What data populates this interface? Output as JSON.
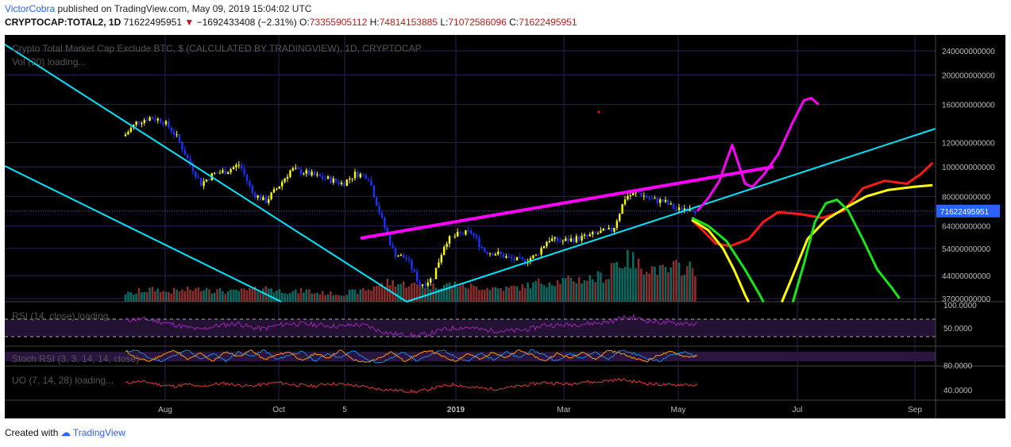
{
  "header": {
    "author": "VictorCobra",
    "published": "published on TradingView.com, May 09, 2019 15:04:02 UTC",
    "symbol": "CRYPTOCAP:TOTAL2, 1D",
    "last": "71622495951",
    "arrow": "▼",
    "change": "−1692433408 (−2.31%)",
    "o_label": "O:",
    "o_value": "73355905112",
    "h_label": "H:",
    "h_value": "74814153885",
    "l_label": "L:",
    "l_value": "71072586096",
    "c_label": "C:",
    "c_value": "71622495951"
  },
  "panes": {
    "main_title": "Crypto Total Market Cap Exclude BTC, $ (CALCULATED BY TRADINGVIEW), 1D, CRYPTOCAP",
    "vol_label": "Vol (20) loading...",
    "rsi_label": "RSI (14, close) loading...",
    "stoch_label": "Stoch RSI (3, 3, 14, 14, close)",
    "uo_label": "UO (7, 14, 28) loading..."
  },
  "price_axis": {
    "labels": [
      "240000000000",
      "200000000000",
      "160000000000",
      "120000000000",
      "100000000000",
      "80000000000",
      "64000000000",
      "54000000000",
      "44000000000",
      "37000000000"
    ],
    "current": "71622495951"
  },
  "rsi_axis": [
    "100.0000",
    "50.0000"
  ],
  "stoch_axis": [
    "80.0000"
  ],
  "uo_axis": [
    "40.0000"
  ],
  "time_axis": [
    "Aug",
    "Oct",
    "5",
    "2019",
    "Mar",
    "May",
    "Jul",
    "Sep"
  ],
  "footer": {
    "created_with": "Created with",
    "brand": "TradingView"
  },
  "colors": {
    "background": "#000000",
    "trend_cyan": "#00e5ff",
    "trend_magenta": "#ff00ff",
    "projection_red": "#ff1a1a",
    "projection_yellow": "#ffff00",
    "projection_green": "#19e619",
    "candle_up": "#ffff00",
    "candle_down": "#1a33ff",
    "rsi_line": "#9c27b0",
    "uo_line": "#e53935",
    "current_price_tag": "#2962ff"
  },
  "chart_data": {
    "type": "candlestick",
    "title": "Crypto Total Market Cap Exclude BTC, $ (CALCULATED BY TRADINGVIEW), 1D, CRYPTOCAP",
    "y_scale": "log",
    "x_ticks": [
      "Aug",
      "Oct",
      "5",
      "2019",
      "Mar",
      "May",
      "Jul",
      "Sep"
    ],
    "y_ticks": [
      240000000000,
      200000000000,
      160000000000,
      120000000000,
      100000000000,
      80000000000,
      64000000000,
      54000000000,
      44000000000,
      37000000000
    ],
    "last_close": 71622495951,
    "price_path": [
      {
        "date": "2018-07-01",
        "close": 126000000000
      },
      {
        "date": "2018-07-08",
        "close": 140000000000
      },
      {
        "date": "2018-07-15",
        "close": 145000000000
      },
      {
        "date": "2018-07-22",
        "close": 142000000000
      },
      {
        "date": "2018-07-29",
        "close": 128000000000
      },
      {
        "date": "2018-08-05",
        "close": 105000000000
      },
      {
        "date": "2018-08-12",
        "close": 88000000000
      },
      {
        "date": "2018-08-19",
        "close": 95000000000
      },
      {
        "date": "2018-08-26",
        "close": 97000000000
      },
      {
        "date": "2018-09-02",
        "close": 102000000000
      },
      {
        "date": "2018-09-09",
        "close": 82000000000
      },
      {
        "date": "2018-09-16",
        "close": 77000000000
      },
      {
        "date": "2018-09-23",
        "close": 86000000000
      },
      {
        "date": "2018-09-30",
        "close": 98000000000
      },
      {
        "date": "2018-10-07",
        "close": 96000000000
      },
      {
        "date": "2018-10-14",
        "close": 93000000000
      },
      {
        "date": "2018-10-21",
        "close": 91000000000
      },
      {
        "date": "2018-10-28",
        "close": 88000000000
      },
      {
        "date": "2018-11-04",
        "close": 95000000000
      },
      {
        "date": "2018-11-11",
        "close": 93000000000
      },
      {
        "date": "2018-11-18",
        "close": 68000000000
      },
      {
        "date": "2018-11-25",
        "close": 52000000000
      },
      {
        "date": "2018-12-02",
        "close": 50000000000
      },
      {
        "date": "2018-12-09",
        "close": 41000000000
      },
      {
        "date": "2018-12-16",
        "close": 43000000000
      },
      {
        "date": "2018-12-23",
        "close": 57000000000
      },
      {
        "date": "2018-12-30",
        "close": 60000000000
      },
      {
        "date": "2019-01-06",
        "close": 61000000000
      },
      {
        "date": "2019-01-13",
        "close": 53000000000
      },
      {
        "date": "2019-01-20",
        "close": 52000000000
      },
      {
        "date": "2019-01-27",
        "close": 50000000000
      },
      {
        "date": "2019-02-03",
        "close": 49000000000
      },
      {
        "date": "2019-02-10",
        "close": 51000000000
      },
      {
        "date": "2019-02-17",
        "close": 58000000000
      },
      {
        "date": "2019-02-24",
        "close": 57000000000
      },
      {
        "date": "2019-03-03",
        "close": 58000000000
      },
      {
        "date": "2019-03-10",
        "close": 59000000000
      },
      {
        "date": "2019-03-17",
        "close": 61000000000
      },
      {
        "date": "2019-03-24",
        "close": 62000000000
      },
      {
        "date": "2019-03-31",
        "close": 80000000000
      },
      {
        "date": "2019-04-07",
        "close": 82000000000
      },
      {
        "date": "2019-04-14",
        "close": 78000000000
      },
      {
        "date": "2019-04-21",
        "close": 77000000000
      },
      {
        "date": "2019-04-28",
        "close": 72000000000
      },
      {
        "date": "2019-05-05",
        "close": 74000000000
      },
      {
        "date": "2019-05-09",
        "close": 71622495951
      }
    ],
    "volume_relative": [
      0.15,
      0.2,
      0.22,
      0.18,
      0.2,
      0.22,
      0.25,
      0.2,
      0.18,
      0.2,
      0.22,
      0.25,
      0.2,
      0.18,
      0.2,
      0.16,
      0.15,
      0.14,
      0.18,
      0.22,
      0.3,
      0.35,
      0.32,
      0.3,
      0.28,
      0.3,
      0.32,
      0.28,
      0.26,
      0.25,
      0.24,
      0.26,
      0.3,
      0.35,
      0.36,
      0.38,
      0.4,
      0.42,
      0.45,
      0.7,
      0.75,
      0.65,
      0.6,
      0.55,
      0.62,
      0.6
    ],
    "rsi_path": [
      62,
      66,
      64,
      58,
      52,
      45,
      40,
      48,
      52,
      55,
      45,
      42,
      50,
      55,
      54,
      52,
      50,
      48,
      52,
      50,
      38,
      30,
      28,
      25,
      30,
      40,
      44,
      46,
      40,
      38,
      37,
      38,
      42,
      52,
      50,
      52,
      54,
      56,
      58,
      68,
      70,
      62,
      58,
      55,
      56,
      52
    ],
    "stoch_path": [
      80,
      90,
      40,
      20,
      60,
      90,
      30,
      70,
      20,
      80,
      50,
      90,
      30,
      60,
      80,
      20,
      70,
      40,
      90,
      30,
      10,
      40,
      80,
      20,
      60,
      90,
      50,
      20,
      70,
      30,
      80,
      40,
      90,
      60,
      20,
      70,
      40,
      80,
      30,
      90,
      70,
      40,
      20,
      60,
      80,
      50
    ],
    "uo_path": [
      52,
      56,
      54,
      48,
      46,
      50,
      44,
      50,
      52,
      48,
      46,
      50,
      54,
      50,
      48,
      46,
      52,
      50,
      48,
      44,
      40,
      38,
      36,
      34,
      40,
      46,
      50,
      44,
      42,
      40,
      42,
      46,
      50,
      54,
      52,
      50,
      56,
      54,
      58,
      60,
      56,
      52,
      50,
      48,
      50,
      47
    ],
    "drawings": [
      {
        "name": "upper channel line",
        "color": "cyan"
      },
      {
        "name": "lower channel line",
        "color": "cyan"
      },
      {
        "name": "rising support line",
        "color": "cyan"
      },
      {
        "name": "resistance line",
        "color": "magenta"
      },
      {
        "name": "bull projection",
        "color": "magenta"
      },
      {
        "name": "red projection",
        "color": "red"
      },
      {
        "name": "yellow projection",
        "color": "yellow"
      },
      {
        "name": "green projection",
        "color": "green"
      }
    ]
  }
}
